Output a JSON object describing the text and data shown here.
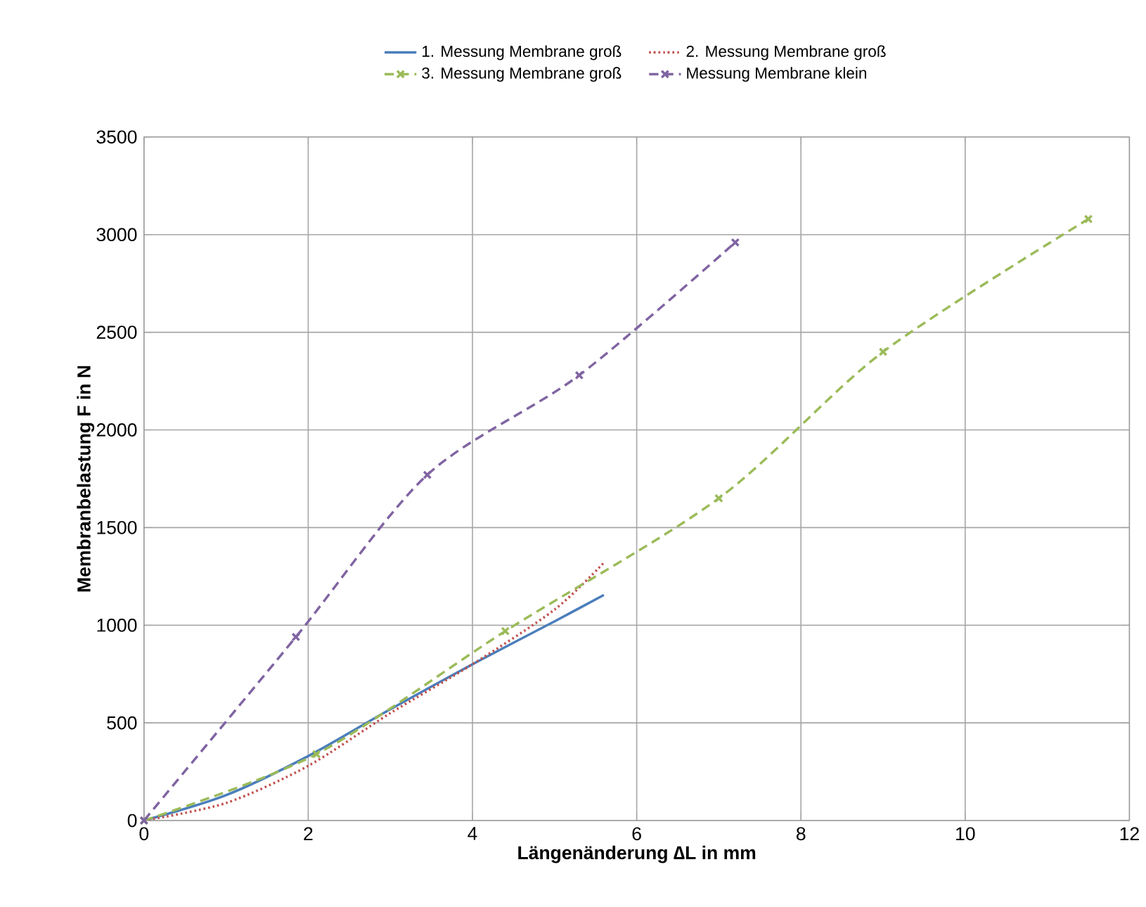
{
  "chart_data": {
    "type": "line",
    "xlabel": "Längenänderung ∆L in mm",
    "ylabel": "Membranbelastung F in N",
    "xlim": [
      0,
      12
    ],
    "ylim": [
      0,
      3500
    ],
    "xticks": [
      0,
      2,
      4,
      6,
      8,
      10,
      12
    ],
    "yticks": [
      0,
      500,
      1000,
      1500,
      2000,
      2500,
      3000,
      3500
    ],
    "grid": true,
    "legend": "top",
    "series": [
      {
        "name": "1. Messung Membrane groß",
        "color": "#4a7ebb",
        "line_style": "solid",
        "marker": "none",
        "x": [
          0,
          1,
          2,
          3,
          4,
          5,
          5.6
        ],
        "values": [
          0,
          130,
          330,
          570,
          800,
          1020,
          1155
        ]
      },
      {
        "name": "2. Messung Membrane groß",
        "color": "#c0504d",
        "line_style": "dotted",
        "marker": "none",
        "x": [
          0,
          1,
          2,
          3,
          4,
          5,
          5.6
        ],
        "values": [
          0,
          90,
          280,
          550,
          800,
          1080,
          1320
        ]
      },
      {
        "name": "3. Messung Membrane groß",
        "color": "#9bbb59",
        "line_style": "dashed",
        "marker": "cross",
        "x": [
          0,
          2.1,
          4.4,
          7,
          9,
          11.5
        ],
        "values": [
          0,
          340,
          970,
          1650,
          2400,
          3080
        ]
      },
      {
        "name": "Messung Membrane klein",
        "color": "#8064a2",
        "line_style": "dashed",
        "marker": "cross",
        "x": [
          0,
          1.85,
          3.45,
          5.3,
          7.2
        ],
        "values": [
          0,
          940,
          1770,
          2280,
          2960
        ]
      }
    ]
  }
}
